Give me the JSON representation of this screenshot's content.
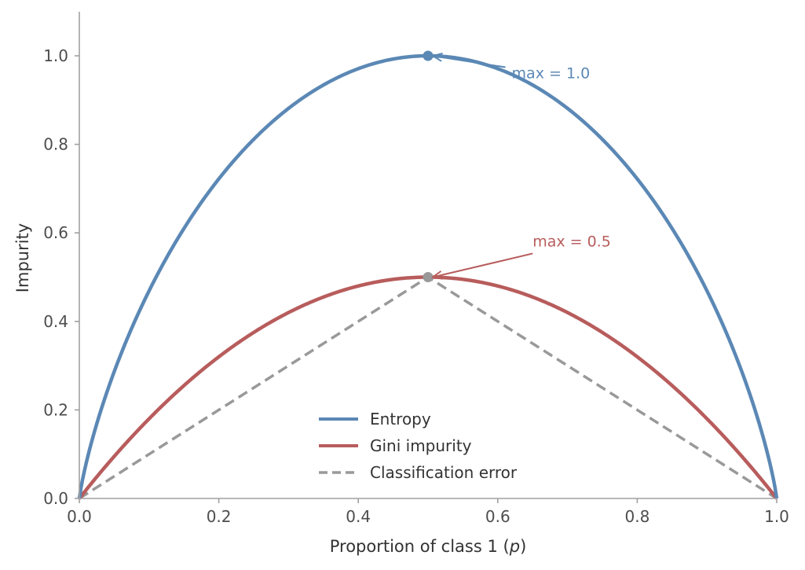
{
  "chart_data": {
    "type": "line",
    "title": "",
    "xlabel": "Proportion of class 1 (p)",
    "xlabel_prefix": "Proportion of class 1 (",
    "xlabel_var": "p",
    "xlabel_suffix": ")",
    "ylabel": "Impurity",
    "xlim": [
      0.0,
      1.0
    ],
    "ylim": [
      0.0,
      1.1
    ],
    "grid": false,
    "legend_position": "lower center",
    "xticks": [
      "0.0",
      "0.2",
      "0.4",
      "0.6",
      "0.8",
      "1.0"
    ],
    "yticks": [
      "0.0",
      "0.2",
      "0.4",
      "0.6",
      "0.8",
      "1.0"
    ],
    "x": [
      0.0,
      0.05,
      0.1,
      0.15,
      0.2,
      0.25,
      0.3,
      0.35,
      0.4,
      0.45,
      0.5,
      0.55,
      0.6,
      0.65,
      0.7,
      0.75,
      0.8,
      0.85,
      0.9,
      0.95,
      1.0
    ],
    "series": [
      {
        "name": "Entropy",
        "color": "#5b88b5",
        "style": "solid",
        "values": [
          0.0,
          0.286,
          0.469,
          0.61,
          0.722,
          0.811,
          0.881,
          0.934,
          0.971,
          0.993,
          1.0,
          0.993,
          0.971,
          0.934,
          0.881,
          0.811,
          0.722,
          0.61,
          0.469,
          0.286,
          0.0
        ]
      },
      {
        "name": "Gini impurity",
        "color": "#b85c5c",
        "style": "solid",
        "values": [
          0.0,
          0.095,
          0.18,
          0.255,
          0.32,
          0.375,
          0.42,
          0.455,
          0.48,
          0.495,
          0.5,
          0.495,
          0.48,
          0.455,
          0.42,
          0.375,
          0.32,
          0.255,
          0.18,
          0.095,
          0.0
        ]
      },
      {
        "name": "Classification error",
        "color": "#999999",
        "style": "dashed",
        "values": [
          0.0,
          0.05,
          0.1,
          0.15,
          0.2,
          0.25,
          0.3,
          0.35,
          0.4,
          0.45,
          0.5,
          0.45,
          0.4,
          0.35,
          0.3,
          0.25,
          0.2,
          0.15,
          0.1,
          0.05,
          0.0
        ]
      }
    ],
    "annotations": [
      {
        "text": "max = 1.0",
        "point": [
          0.5,
          1.0
        ],
        "text_pos": [
          0.62,
          0.96
        ],
        "color": "#5b88b5"
      },
      {
        "text": "max = 0.5",
        "point": [
          0.5,
          0.5
        ],
        "text_pos": [
          0.65,
          0.58
        ],
        "color": "#b85c5c"
      }
    ],
    "markers": [
      {
        "x": 0.5,
        "y": 1.0,
        "color": "#5b88b5"
      },
      {
        "x": 0.5,
        "y": 0.5,
        "color": "#999999"
      }
    ]
  }
}
